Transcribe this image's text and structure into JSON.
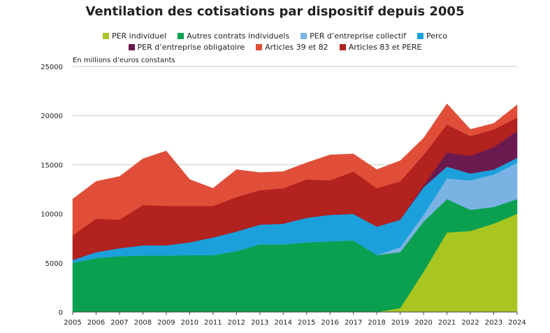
{
  "chart_data": {
    "type": "area",
    "stacked": true,
    "title": "Ventilation des cotisations par dispositif depuis 2005",
    "ylabel": "En millions d’euros constants",
    "xlabel": "",
    "ylim": [
      0,
      25000
    ],
    "yticks": [
      "0",
      "5000",
      "10000",
      "15000",
      "20000",
      "25000"
    ],
    "grid": true,
    "legend_position": "top",
    "x": [
      "2005",
      "2006",
      "2007",
      "2008",
      "2009",
      "2010",
      "2011",
      "2012",
      "2013",
      "2014",
      "2015",
      "2016",
      "2017",
      "2018",
      "2019",
      "2020",
      "2021",
      "2022",
      "2023",
      "2024"
    ],
    "series": [
      {
        "name": "PER individuel",
        "color": "#a8c520",
        "values": [
          0,
          0,
          0,
          0,
          0,
          0,
          0,
          0,
          0,
          0,
          0,
          0,
          0,
          0,
          400,
          4100,
          8100,
          8250,
          9000,
          10000
        ]
      },
      {
        "name": "Autres contrats individuels",
        "color": "#0aa050",
        "values": [
          5000,
          5500,
          5700,
          5750,
          5750,
          5800,
          5800,
          6200,
          6900,
          6900,
          7100,
          7200,
          7300,
          5800,
          5700,
          5100,
          3400,
          2150,
          1700,
          1500
        ]
      },
      {
        "name": "PER d’entreprise collectif",
        "color": "#7ab3e3",
        "values": [
          0,
          0,
          0,
          0,
          0,
          0,
          0,
          0,
          0,
          0,
          0,
          0,
          0,
          0,
          500,
          700,
          2100,
          3000,
          3300,
          3700
        ]
      },
      {
        "name": "Perco",
        "color": "#1ca0dc",
        "values": [
          300,
          600,
          800,
          1050,
          1050,
          1300,
          1800,
          2000,
          2000,
          2100,
          2500,
          2700,
          2700,
          2900,
          2800,
          2800,
          1200,
          700,
          500,
          500
        ]
      },
      {
        "name": "PER d’entreprise obligatoire",
        "color": "#6b1a4f",
        "values": [
          0,
          0,
          0,
          0,
          0,
          0,
          0,
          0,
          0,
          0,
          0,
          0,
          0,
          0,
          0,
          200,
          1440,
          1800,
          2300,
          2750
        ]
      },
      {
        "name": "Articles 83 et PERE",
        "color": "#b2221f",
        "values": [
          2500,
          3400,
          2900,
          4100,
          4000,
          3700,
          3200,
          3500,
          3500,
          3600,
          3900,
          3500,
          4300,
          3900,
          3900,
          3100,
          2860,
          2000,
          1800,
          1350
        ]
      },
      {
        "name": "Articles 39 et 82",
        "color": "#e04e39",
        "values": [
          3700,
          3800,
          4400,
          4700,
          5600,
          2700,
          1800,
          2800,
          1800,
          1700,
          1700,
          2600,
          1800,
          1900,
          2100,
          1700,
          2100,
          700,
          600,
          1300
        ]
      }
    ],
    "legend_order": [
      [
        "PER individuel",
        "Autres contrats individuels",
        "PER d’entreprise collectif",
        "Perco"
      ],
      [
        "PER d’entreprise obligatoire",
        "Articles 39 et 82",
        "Articles 83 et PERE"
      ]
    ]
  }
}
